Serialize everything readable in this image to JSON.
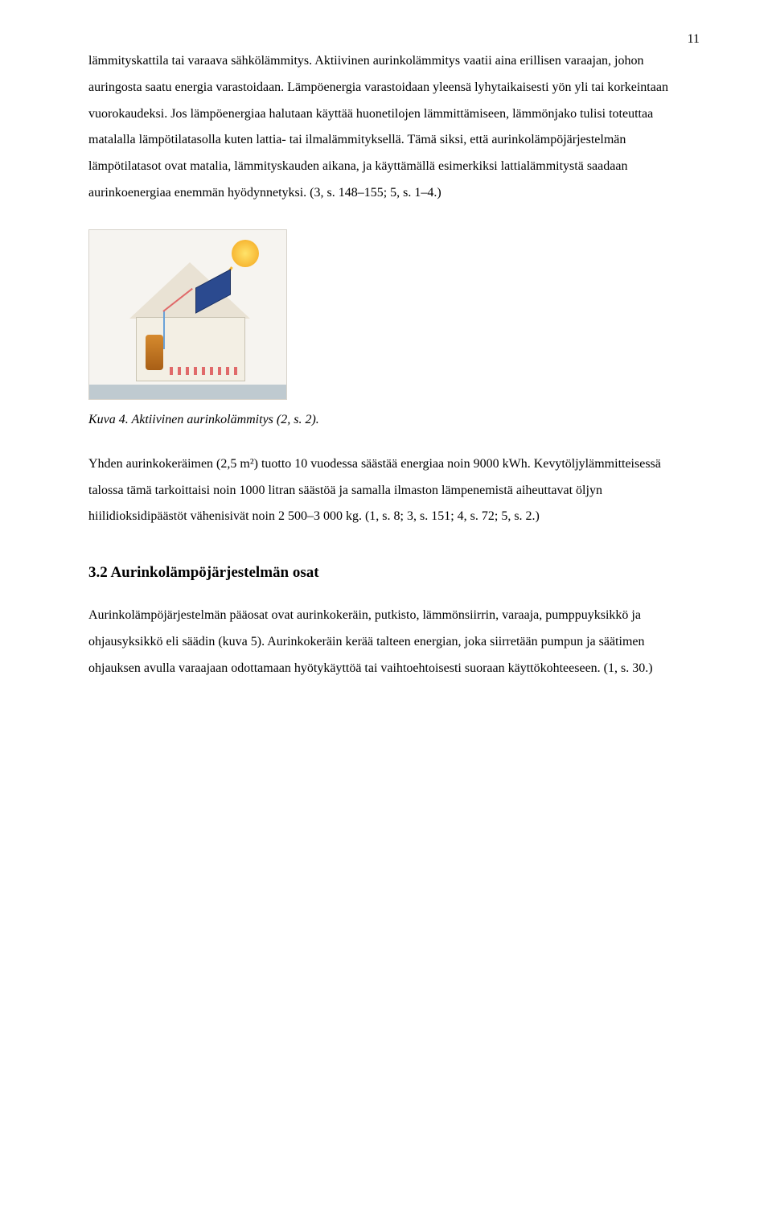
{
  "page_number": "11",
  "para1": "lämmityskattila tai varaava sähkölämmitys. Aktiivinen aurinkolämmitys vaatii aina erillisen varaajan, johon auringosta saatu energia varastoidaan. Lämpöenergia varastoidaan yleensä lyhytaikaisesti yön yli tai korkeintaan vuorokaudeksi. Jos lämpöenergiaa halutaan käyttää huonetilojen lämmittämiseen, lämmönjako tulisi toteuttaa matalalla lämpötilatasolla kuten lattia- tai ilmalämmityksellä. Tämä siksi, että aurinkolämpöjärjestelmän lämpötilatasot ovat matalia, lämmityskauden aikana, ja käyttämällä esimerkiksi lattialämmitystä saadaan aurinkoenergiaa enemmän hyödynnetyksi. (3, s. 148–155; 5, s. 1–4.)",
  "figure4": {
    "caption": "Kuva 4. Aktiivinen aurinkolämmitys (2, s. 2).",
    "colors": {
      "background": "#f6f4f0",
      "roof": "#e9e2d4",
      "wall": "#f3efe4",
      "collector": "#2b4a8f",
      "tank": "#d68a2e",
      "pipe_cold": "#6aa2d8",
      "pipe_hot": "#e06a6a",
      "sun": "#f7b733",
      "ground": "#bfcad0"
    }
  },
  "para2": "Yhden aurinkokeräimen (2,5 m²) tuotto 10 vuodessa säästää energiaa noin 9000 kWh. Kevytöljylämmitteisessä talossa tämä tarkoittaisi noin 1000 litran säästöä ja samalla ilmaston lämpenemistä aiheuttavat öljyn hiilidioksidipäästöt vähenisivät noin 2 500–3 000 kg. (1, s. 8; 3, s. 151; 4, s. 72; 5, s. 2.)",
  "section_heading": "3.2  Aurinkolämpöjärjestelmän osat",
  "para3": "Aurinkolämpöjärjestelmän pääosat ovat aurinkokeräin, putkisto, lämmönsiirrin, varaaja, pumppuyksikkö ja ohjausyksikkö eli säädin (kuva 5). Aurinkokeräin kerää talteen energian, joka siirretään pumpun ja säätimen ohjauksen avulla varaajaan odottamaan hyötykäyttöä tai vaihtoehtoisesti suoraan käyttökohteeseen. (1, s. 30.)"
}
